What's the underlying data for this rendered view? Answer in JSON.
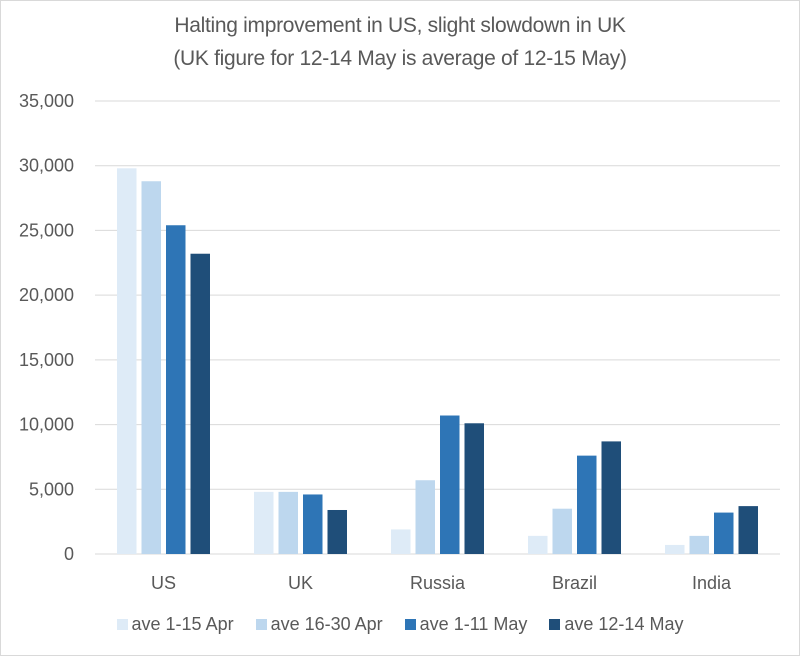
{
  "chart_data": {
    "type": "bar",
    "title": "Halting improvement in US, slight slowdown in UK",
    "subtitle": "(UK figure for 12-14 May is average of 12-15 May)",
    "xlabel": "",
    "ylabel": "",
    "categories": [
      "US",
      "UK",
      "Russia",
      "Brazil",
      "India"
    ],
    "series": [
      {
        "name": "ave 1-15 Apr",
        "color": "#DEEBF7",
        "values": [
          29800,
          4800,
          1900,
          1400,
          700
        ]
      },
      {
        "name": "ave 16-30 Apr",
        "color": "#BDD7EE",
        "values": [
          28800,
          4800,
          5700,
          3500,
          1400
        ]
      },
      {
        "name": "ave 1-11 May",
        "color": "#2E75B6",
        "values": [
          25400,
          4600,
          10700,
          7600,
          3200
        ]
      },
      {
        "name": "ave 12-14 May",
        "color": "#1F4E79",
        "values": [
          23200,
          3400,
          10100,
          8700,
          3700
        ]
      }
    ],
    "ylim": [
      0,
      35000
    ],
    "yticks": [
      0,
      5000,
      10000,
      15000,
      20000,
      25000,
      30000,
      35000
    ],
    "ytick_labels": [
      "0",
      "5,000",
      "10,000",
      "15,000",
      "20,000",
      "25,000",
      "30,000",
      "35,000"
    ],
    "grid": true,
    "legend_position": "bottom"
  }
}
